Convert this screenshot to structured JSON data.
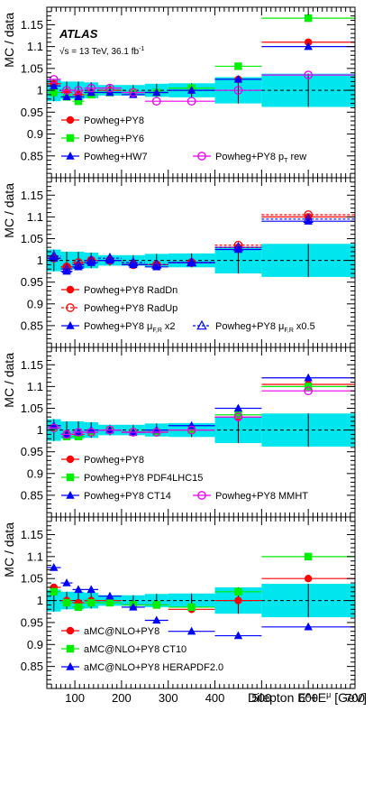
{
  "figure": {
    "experiment": "ATLAS",
    "energy_label": "√s = 13 TeV, 36.1 fb",
    "energy_superscript": "-1",
    "xlabel": "Dilepton E",
    "xlabel_sup1": "e",
    "xlabel_mid": "+E",
    "xlabel_sup2": "μ",
    "xlabel_unit": " [GeV]",
    "ylabel": "MC / data"
  },
  "x_axis": {
    "range": [
      40,
      700
    ],
    "ticks": [
      100,
      200,
      300,
      400,
      500,
      600,
      700
    ]
  },
  "y_axis": {
    "range": [
      0.8,
      1.19
    ],
    "ticks": [
      0.85,
      0.9,
      0.95,
      1,
      1.05,
      1.1,
      1.15
    ],
    "tick_labels": [
      "0.85",
      "0.9",
      "0.95",
      "1",
      "1.05",
      "1.1",
      "1.15"
    ]
  },
  "bins": {
    "edges": [
      40,
      70,
      95,
      120,
      150,
      200,
      250,
      300,
      400,
      500,
      700
    ],
    "data_uncertainty": [
      0.025,
      0.02,
      0.02,
      0.018,
      0.012,
      0.012,
      0.015,
      0.016,
      0.03,
      0.038
    ]
  },
  "chart_data": [
    {
      "type": "scatter",
      "panel": 1,
      "series": [
        {
          "name": "Powheg+PY8",
          "color": "#ff0000",
          "marker": "circle-filled",
          "values": [
            1.015,
            0.995,
            0.99,
            0.995,
            1.0,
            0.995,
            0.995,
            1.0,
            1.025,
            1.11
          ]
        },
        {
          "name": "Powheg+PY6",
          "color": "#00ee00",
          "marker": "square-filled",
          "values": [
            0.995,
            0.985,
            0.975,
            0.99,
            0.995,
            0.995,
            0.995,
            1.005,
            1.055,
            1.165
          ]
        },
        {
          "name": "Powheg+HW7",
          "color": "#0000ff",
          "marker": "triangle-filled",
          "values": [
            1.01,
            0.985,
            0.985,
            0.995,
            0.995,
            0.99,
            0.995,
            1.0,
            1.025,
            1.1
          ]
        },
        {
          "name": "Powheg+PY8 pT rew",
          "color": "#ee00ee",
          "marker": "circle-open",
          "values": [
            1.025,
            1.0,
            1.0,
            1.005,
            1.005,
            0.995,
            0.975,
            0.975,
            1.0,
            1.035
          ]
        }
      ]
    },
    {
      "type": "scatter",
      "panel": 2,
      "series": [
        {
          "name": "Powheg+PY8 RadDn",
          "color": "#ff0000",
          "marker": "circle-filled",
          "values": [
            1.005,
            0.985,
            0.99,
            1.0,
            1.0,
            0.99,
            0.99,
            0.995,
            1.03,
            1.1
          ]
        },
        {
          "name": "Powheg+PY8 RadUp",
          "color": "#ff0000",
          "marker": "circle-open",
          "values": [
            1.005,
            0.985,
            0.995,
            1.0,
            1.0,
            0.99,
            0.99,
            0.995,
            1.035,
            1.105
          ]
        },
        {
          "name": "Powheg+PY8 μF,R x2",
          "color": "#0000ff",
          "marker": "triangle-filled",
          "values": [
            1.005,
            0.975,
            0.985,
            0.995,
            1.0,
            0.99,
            0.985,
            0.995,
            1.025,
            1.09
          ]
        },
        {
          "name": "Powheg+PY8 μF,R x0.5",
          "color": "#0000ff",
          "marker": "triangle-open",
          "values": [
            1.01,
            0.98,
            0.99,
            1.0,
            1.005,
            0.995,
            0.99,
            0.995,
            1.03,
            1.095
          ]
        }
      ]
    },
    {
      "type": "scatter",
      "panel": 3,
      "series": [
        {
          "name": "Powheg+PY8",
          "color": "#ff0000",
          "marker": "circle-filled",
          "values": [
            1.005,
            0.99,
            0.99,
            0.995,
            1.0,
            0.995,
            0.995,
            1.0,
            1.03,
            1.105
          ]
        },
        {
          "name": "Powheg+PY8 PDF4LHC15",
          "color": "#00ee00",
          "marker": "square-filled",
          "values": [
            1.005,
            0.985,
            0.985,
            0.995,
            1.0,
            0.995,
            0.995,
            1.0,
            1.035,
            1.1
          ]
        },
        {
          "name": "Powheg+PY8 CT14",
          "color": "#0000ff",
          "marker": "triangle-filled",
          "values": [
            1.01,
            0.99,
            0.995,
            1.0,
            1.0,
            0.995,
            1.0,
            1.01,
            1.05,
            1.12
          ]
        },
        {
          "name": "Powheg+PY8 MMHT",
          "color": "#ee00ee",
          "marker": "circle-open",
          "values": [
            1.005,
            0.99,
            0.995,
            0.995,
            1.0,
            0.995,
            0.995,
            1.0,
            1.03,
            1.09
          ]
        }
      ]
    },
    {
      "type": "scatter",
      "panel": 4,
      "series": [
        {
          "name": "aMC@NLO+PY8",
          "color": "#ff0000",
          "marker": "circle-filled",
          "values": [
            1.03,
            1.0,
            0.995,
            1.0,
            1.0,
            0.99,
            0.99,
            0.98,
            1.0,
            1.05
          ]
        },
        {
          "name": "aMC@NLO+PY8 CT10",
          "color": "#00ee00",
          "marker": "square-filled",
          "values": [
            1.02,
            0.995,
            0.985,
            0.995,
            0.995,
            0.99,
            0.99,
            0.985,
            1.02,
            1.1
          ]
        },
        {
          "name": "aMC@NLO+PY8 HERAPDF2.0",
          "color": "#0000ff",
          "marker": "triangle-filled",
          "values": [
            1.075,
            1.04,
            1.025,
            1.025,
            1.01,
            0.985,
            0.955,
            0.93,
            0.92,
            0.94
          ]
        }
      ]
    }
  ],
  "legends": [
    {
      "rows": [
        [
          {
            "label": "Powheg+PY8",
            "series": 0
          }
        ],
        [
          {
            "label": "Powheg+PY6",
            "series": 1
          }
        ],
        [
          {
            "label": "Powheg+HW7",
            "series": 2
          },
          {
            "label": "Powheg+PY8 p",
            "sub": "T",
            "tail": " rew",
            "series": 3
          }
        ]
      ]
    },
    {
      "rows": [
        [
          {
            "label": "Powheg+PY8 RadDn",
            "series": 0
          }
        ],
        [
          {
            "label": "Powheg+PY8 RadUp",
            "series": 1
          }
        ],
        [
          {
            "label": "Powheg+PY8 μ",
            "sub": "F,R",
            "tail": " x2",
            "series": 2
          },
          {
            "label": "Powheg+PY8 μ",
            "sub": "F,R",
            "tail": " x0.5",
            "series": 3
          }
        ]
      ]
    },
    {
      "rows": [
        [
          {
            "label": "Powheg+PY8",
            "series": 0
          }
        ],
        [
          {
            "label": "Powheg+PY8 PDF4LHC15",
            "series": 1
          }
        ],
        [
          {
            "label": "Powheg+PY8 CT14",
            "series": 2
          },
          {
            "label": "Powheg+PY8 MMHT",
            "series": 3
          }
        ]
      ]
    },
    {
      "rows": [
        [
          {
            "label": "aMC@NLO+PY8",
            "series": 0
          }
        ],
        [
          {
            "label": "aMC@NLO+PY8 CT10",
            "series": 1
          }
        ],
        [
          {
            "label": "aMC@NLO+PY8 HERAPDF2.0",
            "series": 2
          }
        ]
      ]
    }
  ],
  "colors": {
    "uncertainty_band": "#00e5ee",
    "frame": "#000000"
  }
}
